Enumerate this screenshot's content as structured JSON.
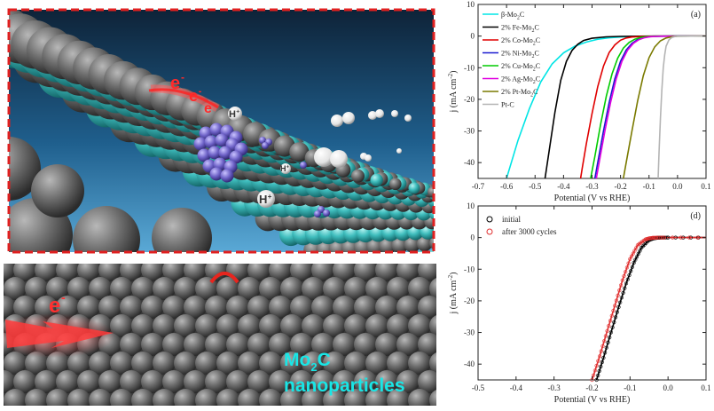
{
  "illustration": {
    "top_panel": {
      "electron_labels": [
        "e",
        "e",
        "e"
      ],
      "electron_superscript": "-",
      "proton_labels": [
        "H",
        "H",
        "H"
      ],
      "proton_superscript": "+"
    },
    "bottom_panel": {
      "electron_label": "e",
      "electron_superscript": "-",
      "material_label_main": "Mo",
      "material_label_sub": "2",
      "material_label_tail": "C",
      "material_label_line2": "nanoparticles"
    }
  },
  "chart_data": [
    {
      "type": "line",
      "panel_label": "(a)",
      "xlabel": "Potential (V vs RHE)",
      "ylabel_main": "j (mA cm",
      "ylabel_sup": "-2",
      "ylabel_close": ")",
      "xlim": [
        -0.7,
        0.1
      ],
      "ylim": [
        -45,
        10
      ],
      "xticks": [
        -0.7,
        -0.6,
        -0.5,
        -0.4,
        -0.3,
        -0.2,
        -0.1,
        0.0,
        0.1
      ],
      "xtick_labels": [
        "-0.7",
        "-0.6",
        "-0.5",
        "-0.4",
        "-0.3",
        "-0.2",
        "-0.1",
        "0.0",
        "0.1"
      ],
      "yticks": [
        -40,
        -30,
        -20,
        -10,
        0,
        10
      ],
      "ytick_labels": [
        "-40",
        "-30",
        "-20",
        "-10",
        "0",
        "10"
      ],
      "legend_position": "top-left",
      "series": [
        {
          "name": "β-Mo2C",
          "legend": [
            "β-Mo",
            "2",
            "C"
          ],
          "color": "#00e5e5",
          "x": [
            -0.6,
            -0.56,
            -0.52,
            -0.48,
            -0.44,
            -0.4,
            -0.36,
            -0.32,
            -0.28,
            -0.24,
            -0.2,
            -0.16,
            -0.12,
            -0.08,
            0.0,
            0.1
          ],
          "y": [
            -45,
            -33,
            -23,
            -14.5,
            -8.8,
            -5.3,
            -3.2,
            -1.9,
            -1.0,
            -0.55,
            -0.3,
            -0.15,
            -0.07,
            -0.03,
            0,
            0
          ]
        },
        {
          "name": "2% Fe-Mo2C",
          "legend": [
            "2% Fe-Mo",
            "2",
            "C"
          ],
          "color": "#000000",
          "x": [
            -0.465,
            -0.45,
            -0.43,
            -0.41,
            -0.39,
            -0.37,
            -0.35,
            -0.33,
            -0.3,
            -0.25,
            -0.2,
            -0.1,
            0.1
          ],
          "y": [
            -45,
            -36,
            -24,
            -14,
            -8,
            -4.5,
            -2.6,
            -1.4,
            -0.7,
            -0.25,
            -0.1,
            -0.02,
            0
          ]
        },
        {
          "name": "2% Co-Mo2C",
          "legend": [
            "2% Co-Mo",
            "2",
            "C"
          ],
          "color": "#e00000",
          "x": [
            -0.34,
            -0.335,
            -0.32,
            -0.3,
            -0.28,
            -0.26,
            -0.24,
            -0.22,
            -0.2,
            -0.18,
            -0.16,
            -0.12,
            -0.08,
            0.1
          ],
          "y": [
            -45,
            -42,
            -34,
            -24.5,
            -16,
            -9.5,
            -5.2,
            -2.8,
            -1.3,
            -0.6,
            -0.3,
            -0.1,
            -0.03,
            0
          ]
        },
        {
          "name": "2% Ni-Mo2C",
          "legend": [
            "2% Ni-Mo",
            "2",
            "C"
          ],
          "color": "#1a1ad0",
          "x": [
            -0.29,
            -0.28,
            -0.26,
            -0.24,
            -0.22,
            -0.2,
            -0.18,
            -0.16,
            -0.14,
            -0.12,
            -0.1,
            -0.06,
            0.1
          ],
          "y": [
            -45,
            -40,
            -30,
            -21,
            -13.5,
            -8,
            -4.4,
            -2.3,
            -1.1,
            -0.5,
            -0.2,
            -0.05,
            0
          ]
        },
        {
          "name": "2% Cu-Mo2C",
          "legend": [
            "2% Cu-Mo",
            "2",
            "C"
          ],
          "color": "#00cc00",
          "x": [
            -0.305,
            -0.29,
            -0.27,
            -0.25,
            -0.23,
            -0.21,
            -0.19,
            -0.17,
            -0.15,
            -0.13,
            -0.11,
            -0.07,
            0.1
          ],
          "y": [
            -45,
            -38,
            -28,
            -19,
            -12,
            -7,
            -3.8,
            -2,
            -1,
            -0.45,
            -0.2,
            -0.05,
            0
          ]
        },
        {
          "name": "2% Ag-Mo2C",
          "legend": [
            "2% Ag-Mo",
            "2",
            "C"
          ],
          "color": "#e000e0",
          "x": [
            -0.285,
            -0.275,
            -0.255,
            -0.235,
            -0.215,
            -0.195,
            -0.175,
            -0.155,
            -0.135,
            -0.115,
            -0.095,
            -0.055,
            0.1
          ],
          "y": [
            -45,
            -40,
            -30,
            -21,
            -13.5,
            -8,
            -4.4,
            -2.3,
            -1.1,
            -0.5,
            -0.2,
            -0.05,
            0
          ]
        },
        {
          "name": "2% Pt-Mo2C",
          "legend": [
            "2% Pt-Mo",
            "2",
            "C"
          ],
          "color": "#7a7a00",
          "x": [
            -0.19,
            -0.18,
            -0.16,
            -0.14,
            -0.12,
            -0.1,
            -0.08,
            -0.06,
            -0.04,
            -0.02,
            0.0,
            0.1
          ],
          "y": [
            -45,
            -40,
            -30,
            -20.5,
            -12.5,
            -6.8,
            -3.4,
            -1.5,
            -0.6,
            -0.2,
            -0.05,
            0
          ]
        },
        {
          "name": "Pt-C",
          "legend": [
            "Pt-C",
            "",
            ""
          ],
          "color": "#b4b4b4",
          "x": [
            -0.068,
            -0.065,
            -0.06,
            -0.055,
            -0.05,
            -0.045,
            -0.04,
            -0.03,
            -0.02,
            -0.01,
            0.0,
            0.1
          ],
          "y": [
            -45,
            -37,
            -26,
            -17,
            -10,
            -6,
            -3.2,
            -1.2,
            -0.45,
            -0.15,
            -0.04,
            0
          ]
        }
      ]
    },
    {
      "type": "line",
      "panel_label": "(d)",
      "xlabel": "Potential (V vs RHE)",
      "ylabel_main": "j (mA cm",
      "ylabel_sup": "-2",
      "ylabel_close": ")",
      "xlim": [
        -0.5,
        0.1
      ],
      "ylim": [
        -45,
        10
      ],
      "xticks": [
        -0.5,
        -0.4,
        -0.3,
        -0.2,
        -0.1,
        0.0,
        0.1
      ],
      "xtick_labels": [
        "-0.5",
        "-0.4",
        "-0.3",
        "-0.2",
        "-0.1",
        "0.0",
        "0.1"
      ],
      "yticks": [
        -40,
        -30,
        -20,
        -10,
        0,
        10
      ],
      "ytick_labels": [
        "-40",
        "-30",
        "-20",
        "-10",
        "0",
        "10"
      ],
      "legend_position": "top-left",
      "series": [
        {
          "name": "initial",
          "color": "#000000",
          "x": [
            -0.188,
            -0.17,
            -0.15,
            -0.13,
            -0.11,
            -0.09,
            -0.07,
            -0.05,
            -0.04,
            -0.03,
            -0.02,
            0.0,
            0.1
          ],
          "y": [
            -45,
            -38,
            -30,
            -22,
            -14.5,
            -8,
            -3.2,
            -0.8,
            -0.3,
            -0.1,
            -0.03,
            0,
            0
          ]
        },
        {
          "name": "after  3000 cycles",
          "color": "#e03030",
          "x": [
            -0.2,
            -0.18,
            -0.16,
            -0.14,
            -0.12,
            -0.1,
            -0.08,
            -0.06,
            -0.05,
            -0.04,
            -0.03,
            -0.01,
            0.1
          ],
          "y": [
            -45,
            -37.5,
            -29.5,
            -21.5,
            -13.5,
            -6.8,
            -2.4,
            -0.6,
            -0.25,
            -0.08,
            -0.02,
            0,
            0
          ]
        }
      ]
    }
  ]
}
